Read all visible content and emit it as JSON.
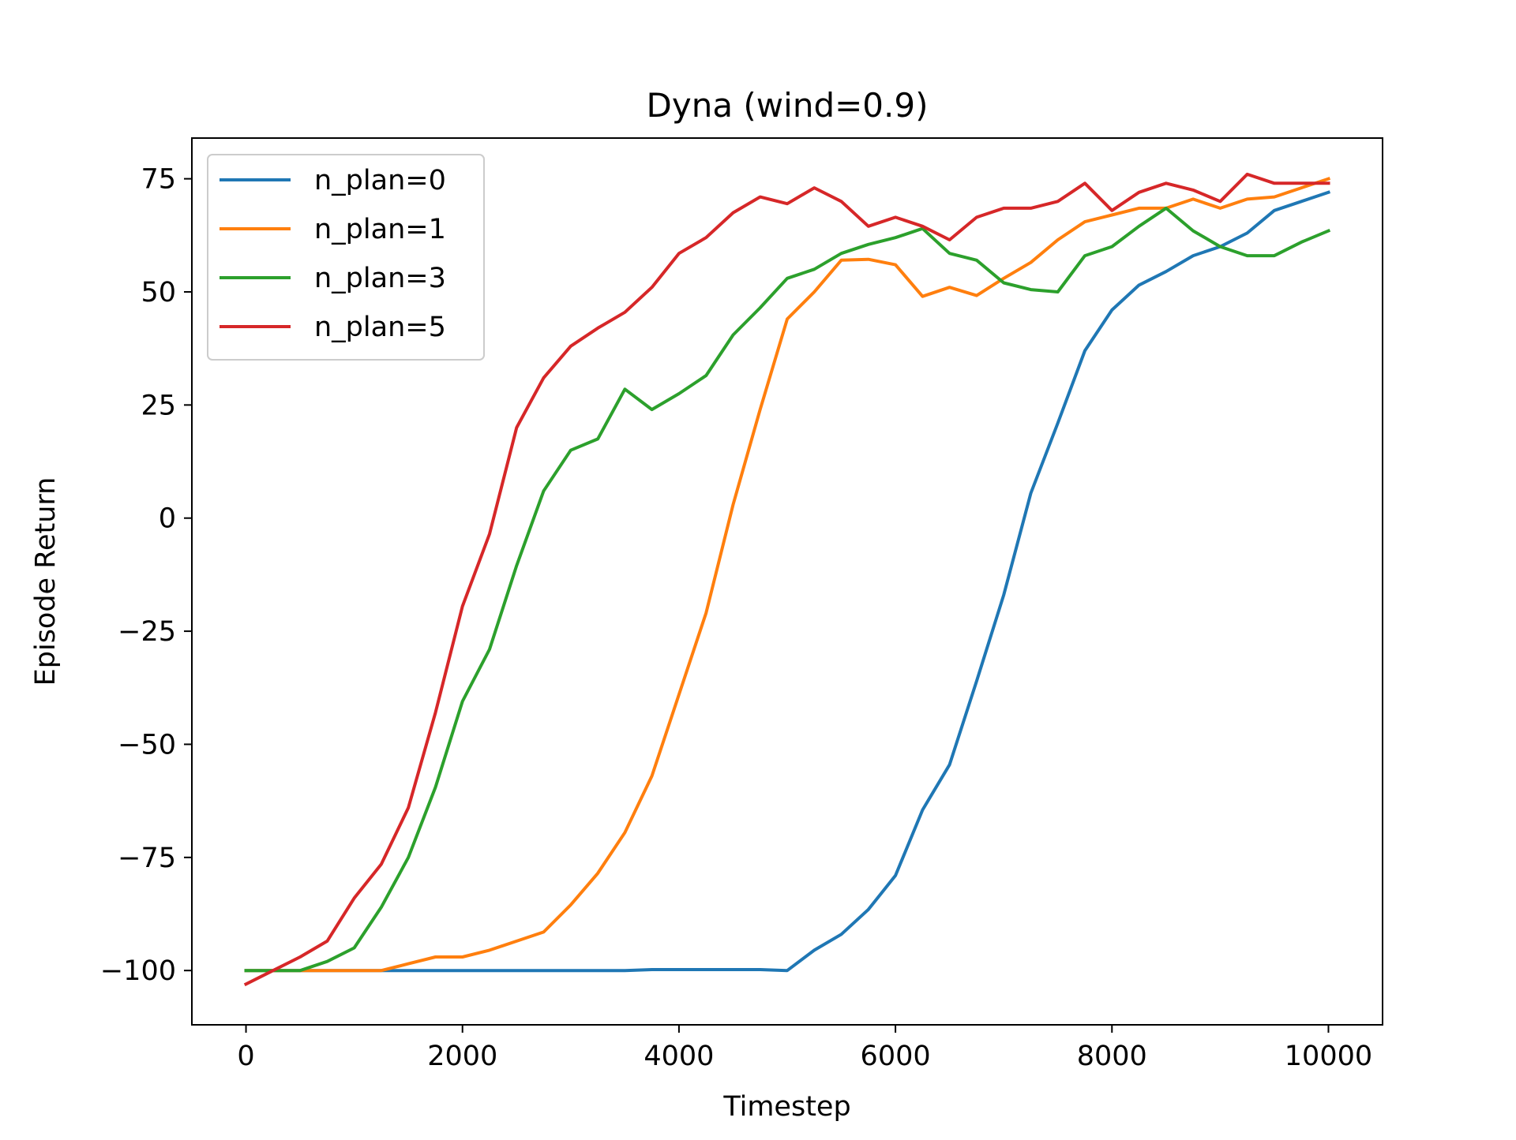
{
  "chart_data": {
    "type": "line",
    "title": "Dyna (wind=0.9)",
    "xlabel": "Timestep",
    "ylabel": "Episode Return",
    "xlim": [
      -500,
      10500
    ],
    "ylim": [
      -112,
      84
    ],
    "xticks": [
      0,
      2000,
      4000,
      6000,
      8000,
      10000
    ],
    "xtick_labels": [
      "0",
      "2000",
      "4000",
      "6000",
      "8000",
      "10000"
    ],
    "yticks": [
      -100,
      -75,
      -50,
      -25,
      0,
      25,
      50,
      75
    ],
    "ytick_labels": [
      "−100",
      "−75",
      "−50",
      "−25",
      "0",
      "25",
      "50",
      "75"
    ],
    "grid": false,
    "legend_position": "top-left",
    "x": [
      0,
      250,
      500,
      750,
      1000,
      1250,
      1500,
      1750,
      2000,
      2250,
      2500,
      2750,
      3000,
      3250,
      3500,
      3750,
      4000,
      4250,
      4500,
      4750,
      5000,
      5250,
      5500,
      5750,
      6000,
      6250,
      6500,
      6750,
      7000,
      7250,
      7500,
      7750,
      8000,
      8250,
      8500,
      8750,
      9000,
      9250,
      9500,
      9750,
      10000
    ],
    "series": [
      {
        "name": "n_plan=0",
        "color": "#1f77b4",
        "values": [
          -100,
          -100,
          -100,
          -100,
          -100,
          -100,
          -100,
          -100,
          -100,
          -100,
          -100,
          -100,
          -100,
          -100,
          -100,
          -99.8,
          -99.8,
          -99.8,
          -99.8,
          -99.8,
          -100,
          -95.5,
          -92,
          -86.5,
          -79,
          -64.5,
          -54.5,
          -36,
          -17,
          5.5,
          21,
          37,
          46,
          51.5,
          54.5,
          58,
          60,
          63,
          68,
          70,
          72
        ]
      },
      {
        "name": "n_plan=1",
        "color": "#ff7f0e",
        "values": [
          -100,
          -100,
          -100,
          -100,
          -100,
          -100,
          -98.5,
          -97,
          -97,
          -95.5,
          -93.5,
          -91.5,
          -85.5,
          -78.5,
          -69.5,
          -57,
          -39,
          -21,
          3,
          24,
          44,
          50,
          57,
          57.2,
          56,
          49,
          51,
          49.2,
          53,
          56.5,
          61.5,
          65.5,
          67,
          68.5,
          68.5,
          70.5,
          68.5,
          70.5,
          71,
          73,
          75
        ]
      },
      {
        "name": "n_plan=3",
        "color": "#2ca02c",
        "values": [
          -100,
          -100,
          -100,
          -98,
          -95,
          -86,
          -75,
          -59.5,
          -40.5,
          -29,
          -10.5,
          6,
          15,
          17.5,
          28.5,
          24,
          27.5,
          31.5,
          40.5,
          46.5,
          53,
          55,
          58.5,
          60.5,
          62,
          64,
          58.5,
          57,
          52,
          50.5,
          50,
          58,
          60,
          64.5,
          68.5,
          63.5,
          60,
          58,
          58,
          61,
          63.5
        ]
      },
      {
        "name": "n_plan=5",
        "color": "#d62728",
        "values": [
          -103,
          -100,
          -97,
          -93.5,
          -84,
          -76.5,
          -64,
          -43,
          -19.5,
          -3.5,
          20,
          31,
          38,
          42,
          45.5,
          51,
          58.5,
          62,
          67.5,
          71,
          69.5,
          73,
          70,
          64.5,
          66.5,
          64.5,
          61.5,
          66.5,
          68.5,
          68.5,
          70,
          74,
          68,
          72,
          74,
          72.5,
          70,
          76,
          74,
          74,
          74
        ]
      }
    ]
  }
}
